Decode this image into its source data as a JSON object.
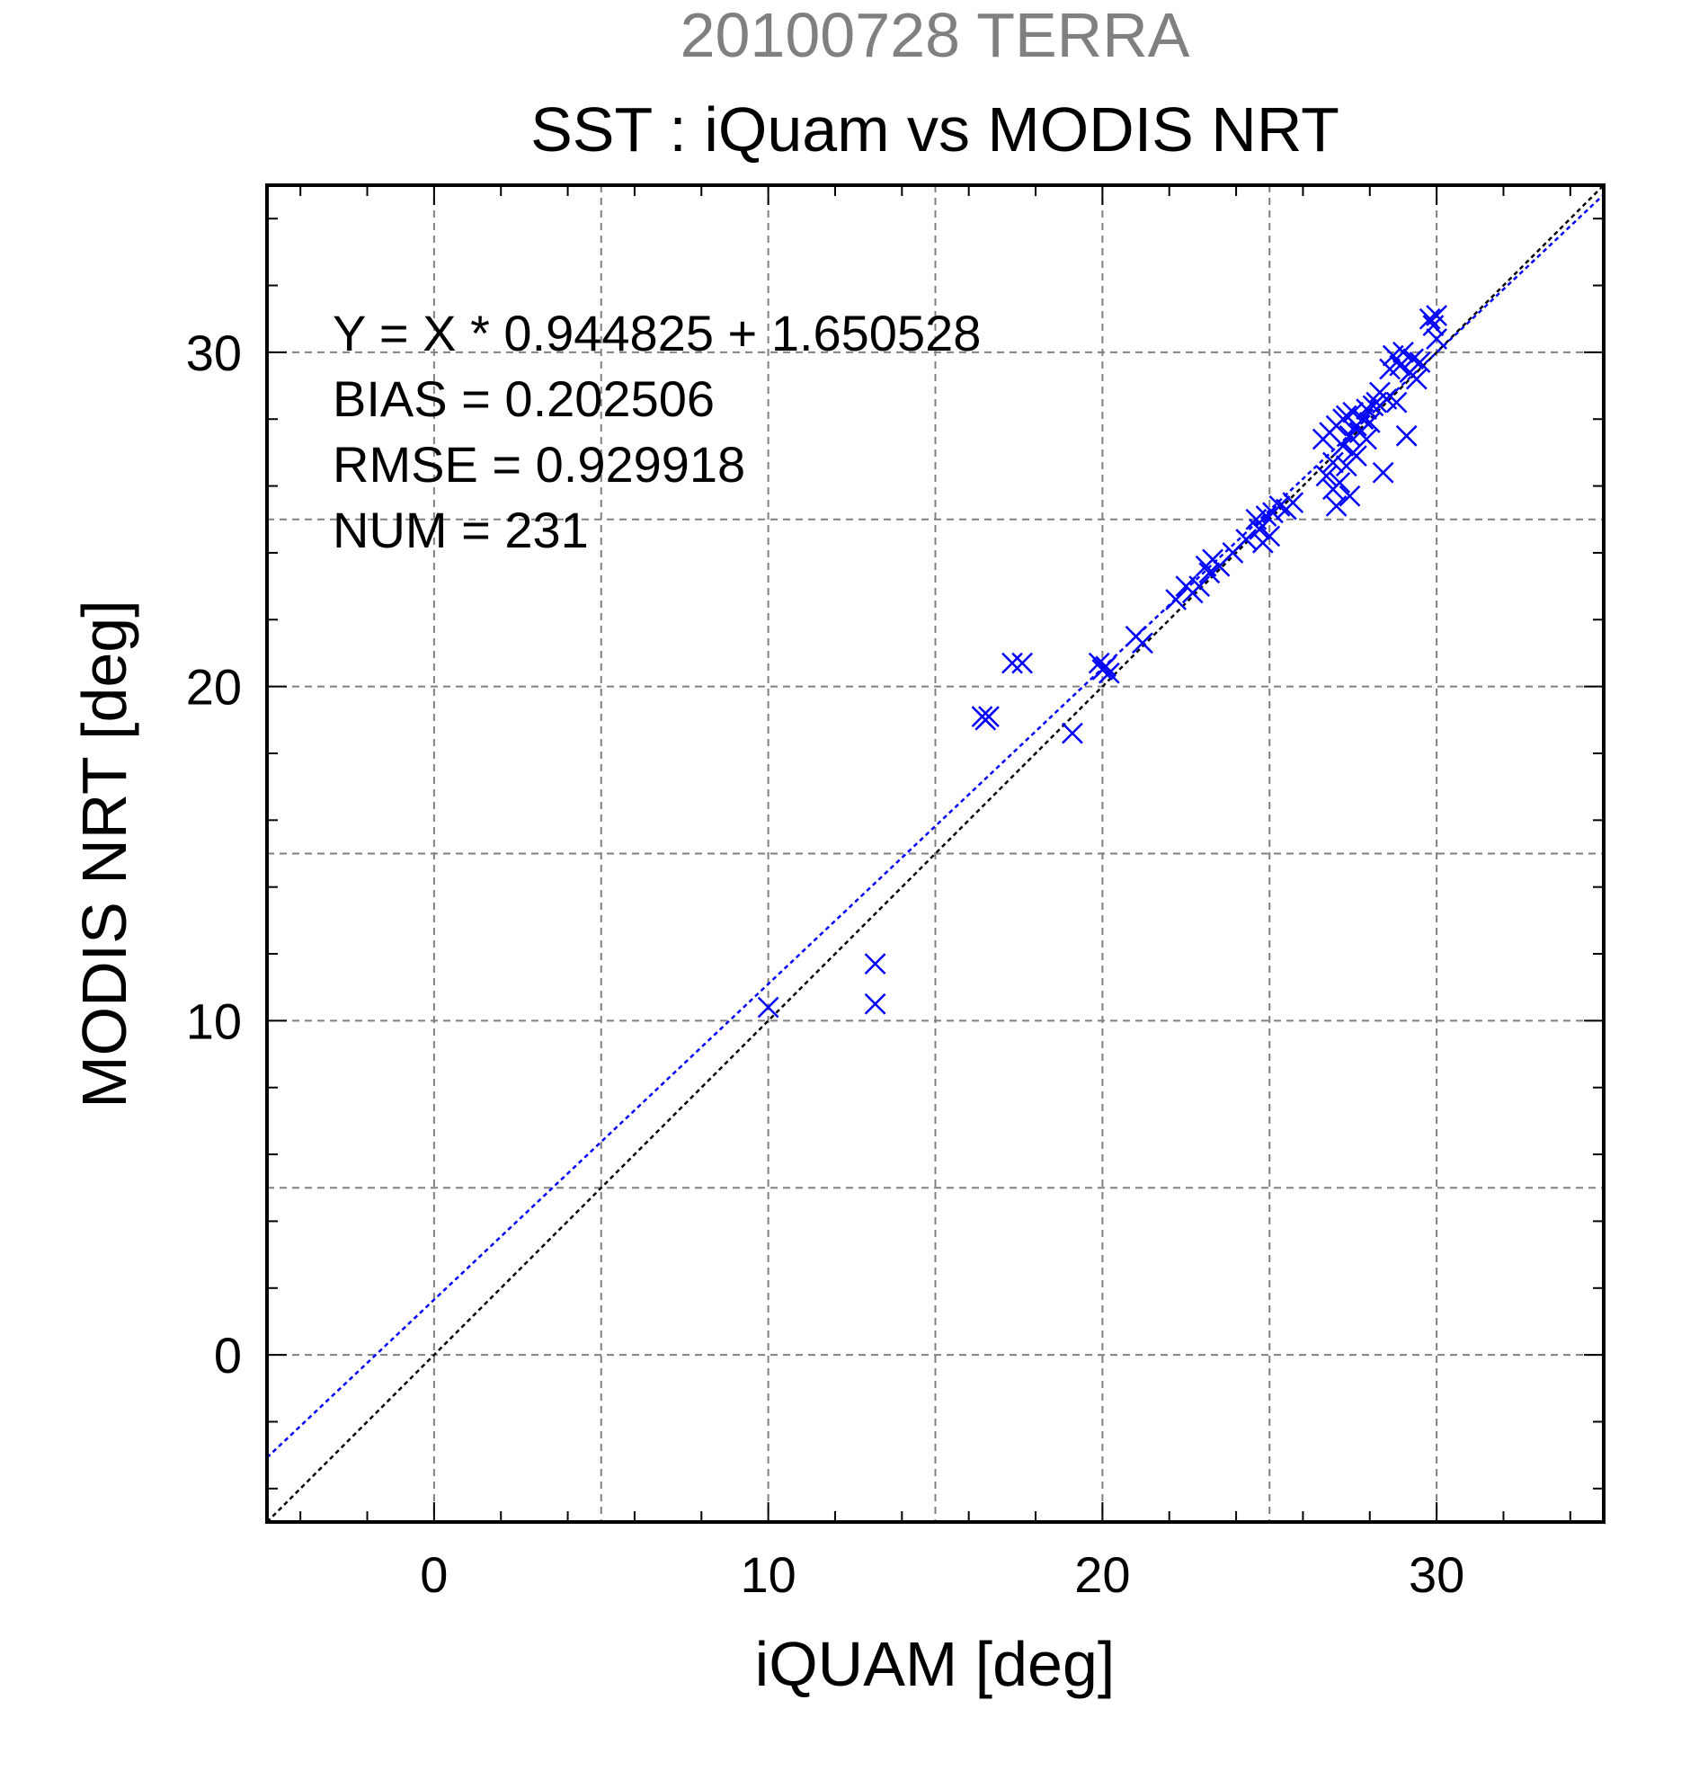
{
  "chart_data": {
    "type": "scatter",
    "supertitle": "20100728 TERRA",
    "title": "SST : iQuam vs MODIS NRT",
    "xlabel": "iQUAM [deg]",
    "ylabel": "MODIS NRT [deg]",
    "xlim": [
      -5,
      35
    ],
    "ylim": [
      -5,
      35
    ],
    "xticks": [
      0,
      10,
      20,
      30
    ],
    "yticks": [
      0,
      10,
      20,
      30
    ],
    "grid": true,
    "annotations": [
      "Y = X * 0.944825 + 1.650528",
      "BIAS = 0.202506",
      "RMSE = 0.929918",
      "NUM = 231"
    ],
    "fit_line": {
      "slope": 0.944825,
      "intercept": 1.650528
    },
    "identity_line": {
      "slope": 1,
      "intercept": 0
    },
    "colors": {
      "points": "#0000ff",
      "fit_line": "#0000ff",
      "identity_line": "#000000",
      "supertitle": "#808080",
      "grid": "#808080"
    },
    "marker": "x",
    "points": [
      [
        10.0,
        10.4
      ],
      [
        13.2,
        11.7
      ],
      [
        13.2,
        10.5
      ],
      [
        16.4,
        19.1
      ],
      [
        16.6,
        19.1
      ],
      [
        16.5,
        19.0
      ],
      [
        17.3,
        20.7
      ],
      [
        17.6,
        20.7
      ],
      [
        19.1,
        18.6
      ],
      [
        19.9,
        20.7
      ],
      [
        20.0,
        20.5
      ],
      [
        20.1,
        20.6
      ],
      [
        20.2,
        20.4
      ],
      [
        21.0,
        21.5
      ],
      [
        21.2,
        21.3
      ],
      [
        22.2,
        22.6
      ],
      [
        22.5,
        23.0
      ],
      [
        22.7,
        22.8
      ],
      [
        22.9,
        23.0
      ],
      [
        23.1,
        23.6
      ],
      [
        23.2,
        23.4
      ],
      [
        23.3,
        23.8
      ],
      [
        23.5,
        23.6
      ],
      [
        23.9,
        24.0
      ],
      [
        24.3,
        24.4
      ],
      [
        24.6,
        25.0
      ],
      [
        24.7,
        24.7
      ],
      [
        24.8,
        24.3
      ],
      [
        24.9,
        25.1
      ],
      [
        25.0,
        24.5
      ],
      [
        25.1,
        25.2
      ],
      [
        25.3,
        25.4
      ],
      [
        25.5,
        25.3
      ],
      [
        25.7,
        25.5
      ],
      [
        26.6,
        27.4
      ],
      [
        26.7,
        26.3
      ],
      [
        26.8,
        27.6
      ],
      [
        26.9,
        25.9
      ],
      [
        26.9,
        26.7
      ],
      [
        27.0,
        25.4
      ],
      [
        27.0,
        27.8
      ],
      [
        27.1,
        26.1
      ],
      [
        27.2,
        28.0
      ],
      [
        27.2,
        27.2
      ],
      [
        27.3,
        26.6
      ],
      [
        27.3,
        28.1
      ],
      [
        27.4,
        25.7
      ],
      [
        27.4,
        27.5
      ],
      [
        27.5,
        27.0
      ],
      [
        27.5,
        28.2
      ],
      [
        27.6,
        26.9
      ],
      [
        27.6,
        27.8
      ],
      [
        27.7,
        27.6
      ],
      [
        27.8,
        28.0
      ],
      [
        27.9,
        27.4
      ],
      [
        27.9,
        28.3
      ],
      [
        28.0,
        27.9
      ],
      [
        28.1,
        28.4
      ],
      [
        28.2,
        28.5
      ],
      [
        28.3,
        28.8
      ],
      [
        28.4,
        26.4
      ],
      [
        28.5,
        28.6
      ],
      [
        28.6,
        29.5
      ],
      [
        28.7,
        29.9
      ],
      [
        28.8,
        28.5
      ],
      [
        28.9,
        29.6
      ],
      [
        29.0,
        30.0
      ],
      [
        29.1,
        27.5
      ],
      [
        29.2,
        29.4
      ],
      [
        29.3,
        29.8
      ],
      [
        29.4,
        29.2
      ],
      [
        29.5,
        29.7
      ],
      [
        29.8,
        31.0
      ],
      [
        29.9,
        30.8
      ],
      [
        30.0,
        31.1
      ],
      [
        30.0,
        30.4
      ]
    ]
  }
}
